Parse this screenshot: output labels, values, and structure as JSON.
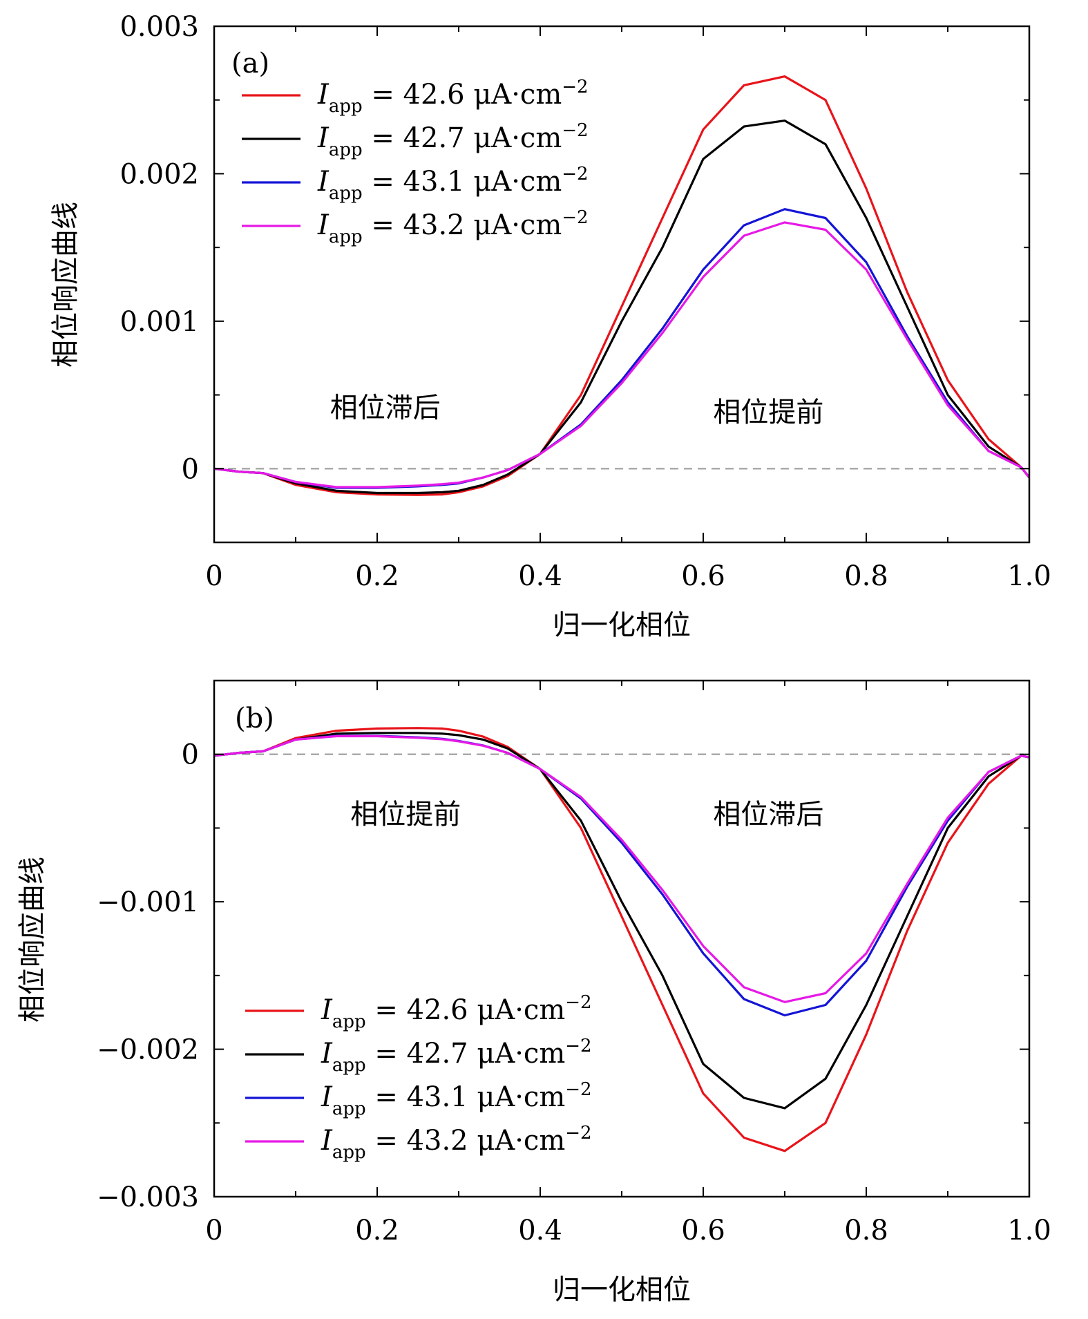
{
  "chart_data": [
    {
      "type": "line",
      "panel_label": "(a)",
      "xlabel": "归一化相位",
      "ylabel": "相位响应曲线",
      "xlim": [
        0,
        1.0
      ],
      "ylim": [
        -0.0005,
        0.003
      ],
      "xticks": [
        0,
        0.2,
        0.4,
        0.6,
        0.8,
        1.0
      ],
      "xtick_labels": [
        "0",
        "0.2",
        "0.4",
        "0.6",
        "0.8",
        "1.0"
      ],
      "yticks": [
        0,
        0.001,
        0.002,
        0.003
      ],
      "ytick_labels": [
        "0",
        "0.001",
        "0.002",
        "0.003"
      ],
      "annotations": [
        {
          "text": "相位滞后",
          "x": 0.21,
          "y": 0.00035
        },
        {
          "text": "相位提前",
          "x": 0.68,
          "y": 0.00032
        }
      ],
      "legend_position": "upper-left",
      "reference_line": {
        "y": 0,
        "style": "dashed",
        "color": "#aaaaaa"
      },
      "series": [
        {
          "label": "I_app = 42.6 μA·cm^-2",
          "label_main": "I",
          "label_sub": "app",
          "label_rest": " = 42.6 μA·cm",
          "label_sup": "−2",
          "color": "#e8141a",
          "x": [
            0,
            0.03,
            0.06,
            0.1,
            0.15,
            0.2,
            0.25,
            0.28,
            0.3,
            0.33,
            0.36,
            0.4,
            0.45,
            0.5,
            0.55,
            0.6,
            0.65,
            0.7,
            0.75,
            0.8,
            0.85,
            0.9,
            0.95,
            0.99,
            1.0
          ],
          "y": [
            0,
            -2e-05,
            -3e-05,
            -0.00011,
            -0.00016,
            -0.000175,
            -0.000178,
            -0.000175,
            -0.00016,
            -0.00012,
            -5e-05,
            0.0001,
            0.0005,
            0.0011,
            0.0017,
            0.0023,
            0.0026,
            0.00266,
            0.0025,
            0.0019,
            0.0012,
            0.0006,
            0.0002,
            1e-05,
            -6e-05
          ]
        },
        {
          "label": "I_app = 42.7 μA·cm^-2",
          "label_main": "I",
          "label_sub": "app",
          "label_rest": " = 42.7 μA·cm",
          "label_sup": "−2",
          "color": "#000000",
          "x": [
            0,
            0.03,
            0.06,
            0.1,
            0.15,
            0.2,
            0.25,
            0.28,
            0.3,
            0.33,
            0.36,
            0.4,
            0.45,
            0.5,
            0.55,
            0.6,
            0.65,
            0.7,
            0.75,
            0.8,
            0.85,
            0.9,
            0.95,
            0.99,
            1.0
          ],
          "y": [
            0,
            -2e-05,
            -3e-05,
            -0.0001,
            -0.00015,
            -0.000165,
            -0.000165,
            -0.00016,
            -0.00015,
            -0.00011,
            -4e-05,
            0.0001,
            0.00045,
            0.001,
            0.0015,
            0.0021,
            0.00232,
            0.00236,
            0.0022,
            0.0017,
            0.0011,
            0.0005,
            0.00015,
            1e-05,
            -6e-05
          ]
        },
        {
          "label": "I_app = 43.1 μA·cm^-2",
          "label_main": "I",
          "label_sub": "app",
          "label_rest": " = 43.1 μA·cm",
          "label_sup": "−2",
          "color": "#1414d6",
          "x": [
            0,
            0.03,
            0.06,
            0.1,
            0.15,
            0.2,
            0.25,
            0.28,
            0.3,
            0.33,
            0.36,
            0.4,
            0.45,
            0.5,
            0.55,
            0.6,
            0.65,
            0.7,
            0.75,
            0.8,
            0.85,
            0.9,
            0.95,
            0.99,
            1.0
          ],
          "y": [
            0,
            -2e-05,
            -3e-05,
            -9e-05,
            -0.00013,
            -0.00013,
            -0.00012,
            -0.00011,
            -0.0001,
            -6e-05,
            -1e-05,
            0.0001,
            0.0003,
            0.0006,
            0.00095,
            0.00135,
            0.00165,
            0.00176,
            0.0017,
            0.0014,
            0.0009,
            0.00045,
            0.00012,
            1e-05,
            -6e-05
          ]
        },
        {
          "label": "I_app = 43.2 μA·cm^-2",
          "label_main": "I",
          "label_sub": "app",
          "label_rest": " = 43.2 μA·cm",
          "label_sup": "−2",
          "color": "#e619e6",
          "x": [
            0,
            0.03,
            0.06,
            0.1,
            0.15,
            0.2,
            0.25,
            0.28,
            0.3,
            0.33,
            0.36,
            0.4,
            0.45,
            0.5,
            0.55,
            0.6,
            0.65,
            0.7,
            0.75,
            0.8,
            0.85,
            0.9,
            0.95,
            0.99,
            1.0
          ],
          "y": [
            0,
            -2e-05,
            -3e-05,
            -9e-05,
            -0.000125,
            -0.000125,
            -0.000115,
            -0.000105,
            -9.5e-05,
            -6e-05,
            -1e-05,
            0.0001,
            0.00029,
            0.00058,
            0.00092,
            0.0013,
            0.00158,
            0.00167,
            0.00162,
            0.00135,
            0.00088,
            0.00043,
            0.00012,
            1e-05,
            -6e-05
          ]
        }
      ]
    },
    {
      "type": "line",
      "panel_label": "(b)",
      "xlabel": "归一化相位",
      "ylabel": "相位响应曲线",
      "xlim": [
        0,
        1.0
      ],
      "ylim": [
        -0.003,
        0.0005
      ],
      "xticks": [
        0,
        0.2,
        0.4,
        0.6,
        0.8,
        1.0
      ],
      "xtick_labels": [
        "0",
        "0.2",
        "0.4",
        "0.6",
        "0.8",
        "1.0"
      ],
      "yticks": [
        0,
        -0.001,
        -0.002,
        -0.003
      ],
      "ytick_labels": [
        "0",
        "−0.001",
        "−0.002",
        "−0.003"
      ],
      "annotations": [
        {
          "text": "相位提前",
          "x": 0.235,
          "y": -0.00047
        },
        {
          "text": "相位滞后",
          "x": 0.68,
          "y": -0.00047
        }
      ],
      "legend_position": "lower-left",
      "reference_line": {
        "y": 0,
        "style": "dashed",
        "color": "#aaaaaa"
      },
      "series": [
        {
          "label": "I_app = 42.6 μA·cm^-2",
          "label_main": "I",
          "label_sub": "app",
          "label_rest": " = 42.6 μA·cm",
          "label_sup": "−2",
          "color": "#e8141a",
          "x": [
            0,
            0.03,
            0.06,
            0.1,
            0.15,
            0.2,
            0.25,
            0.28,
            0.3,
            0.33,
            0.36,
            0.4,
            0.45,
            0.5,
            0.55,
            0.6,
            0.65,
            0.7,
            0.75,
            0.8,
            0.85,
            0.9,
            0.95,
            0.99,
            1.0
          ],
          "y": [
            -1e-05,
            1e-05,
            2e-05,
            0.00011,
            0.00016,
            0.000175,
            0.000178,
            0.000175,
            0.00016,
            0.00012,
            5e-05,
            -0.0001,
            -0.0005,
            -0.0011,
            -0.0017,
            -0.0023,
            -0.0026,
            -0.00269,
            -0.0025,
            -0.0019,
            -0.0012,
            -0.0006,
            -0.0002,
            -1e-05,
            -2e-05
          ]
        },
        {
          "label": "I_app = 42.7 μA·cm^-2",
          "label_main": "I",
          "label_sub": "app",
          "label_rest": " = 42.7 μA·cm",
          "label_sup": "−2",
          "color": "#000000",
          "x": [
            0,
            0.03,
            0.06,
            0.1,
            0.15,
            0.2,
            0.25,
            0.28,
            0.3,
            0.33,
            0.36,
            0.4,
            0.45,
            0.5,
            0.55,
            0.6,
            0.65,
            0.7,
            0.75,
            0.8,
            0.85,
            0.9,
            0.95,
            0.99,
            1.0
          ],
          "y": [
            -1e-05,
            1e-05,
            2e-05,
            0.0001,
            0.00014,
            0.000145,
            0.000145,
            0.00014,
            0.00013,
            0.0001,
            4e-05,
            -0.0001,
            -0.00045,
            -0.001,
            -0.0015,
            -0.0021,
            -0.00233,
            -0.0024,
            -0.0022,
            -0.0017,
            -0.0011,
            -0.0005,
            -0.00015,
            -1e-05,
            -2e-05
          ]
        },
        {
          "label": "I_app = 43.1 μA·cm^-2",
          "label_main": "I",
          "label_sub": "app",
          "label_rest": " = 43.1 μA·cm",
          "label_sup": "−2",
          "color": "#1414d6",
          "x": [
            0,
            0.03,
            0.06,
            0.1,
            0.15,
            0.2,
            0.25,
            0.28,
            0.3,
            0.33,
            0.36,
            0.4,
            0.45,
            0.5,
            0.55,
            0.6,
            0.65,
            0.7,
            0.75,
            0.8,
            0.85,
            0.9,
            0.95,
            0.99,
            1.0
          ],
          "y": [
            -1e-05,
            1e-05,
            2e-05,
            0.0001,
            0.000125,
            0.000125,
            0.000115,
            0.000105,
            9e-05,
            6e-05,
            1e-05,
            -0.0001,
            -0.0003,
            -0.0006,
            -0.00095,
            -0.00135,
            -0.00166,
            -0.00177,
            -0.0017,
            -0.0014,
            -0.0009,
            -0.00045,
            -0.00012,
            -1e-05,
            -2e-05
          ]
        },
        {
          "label": "I_app = 43.2 μA·cm^-2",
          "label_main": "I",
          "label_sub": "app",
          "label_rest": " = 43.2 μA·cm",
          "label_sup": "−2",
          "color": "#e619e6",
          "x": [
            0,
            0.03,
            0.06,
            0.1,
            0.15,
            0.2,
            0.25,
            0.28,
            0.3,
            0.33,
            0.36,
            0.4,
            0.45,
            0.5,
            0.55,
            0.6,
            0.65,
            0.7,
            0.75,
            0.8,
            0.85,
            0.9,
            0.95,
            0.99,
            1.0
          ],
          "y": [
            -1e-05,
            1e-05,
            2e-05,
            0.0001,
            0.000123,
            0.000123,
            0.000112,
            0.000102,
            8.8e-05,
            5.8e-05,
            1e-05,
            -0.0001,
            -0.00029,
            -0.00058,
            -0.00092,
            -0.0013,
            -0.00158,
            -0.00168,
            -0.00162,
            -0.00135,
            -0.00088,
            -0.00043,
            -0.00012,
            -1e-05,
            -2e-05
          ]
        }
      ]
    }
  ]
}
